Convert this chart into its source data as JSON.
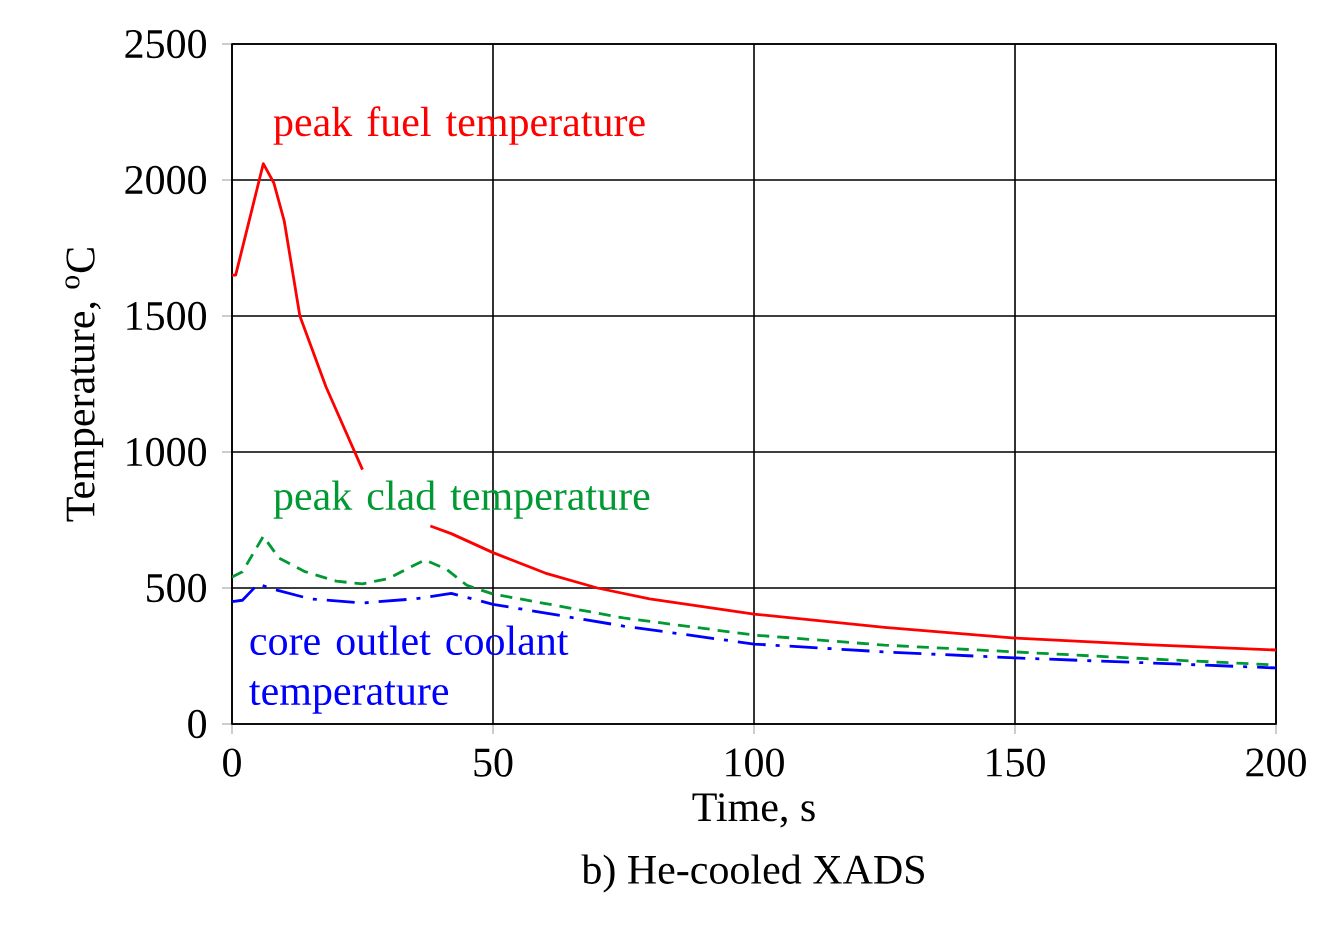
{
  "chart_data": {
    "type": "line",
    "title": "b) He-cooled XADS",
    "xlabel": "Time, s",
    "ylabel": "Temperature, $^{o}$C",
    "xlim": [
      0,
      200
    ],
    "ylim": [
      0,
      2500
    ],
    "xticks": [
      0,
      50,
      100,
      150,
      200
    ],
    "yticks": [
      0,
      500,
      1000,
      1500,
      2000,
      2500
    ],
    "grid": true,
    "legend": false,
    "marker": "none",
    "series": [
      {
        "name": "peak fuel temperature",
        "color": "#ff0000",
        "line_style": "solid",
        "x": [
          0,
          0.7,
          6,
          8,
          10,
          13,
          18,
          25,
          26,
          38,
          42,
          50,
          60,
          70,
          80,
          100,
          125,
          150,
          175,
          200
        ],
        "values": [
          1650,
          1650,
          2060,
          1990,
          1850,
          1500,
          1240,
          935,
          null,
          728,
          700,
          630,
          555,
          500,
          460,
          404,
          355,
          316,
          292,
          272
        ]
      },
      {
        "name": "peak clad temperature",
        "color": "#009933",
        "line_style": "dashed",
        "x": [
          0,
          2,
          6,
          9,
          14,
          20,
          25,
          30,
          34,
          37,
          41,
          45,
          50,
          75,
          100,
          125,
          150,
          175,
          200
        ],
        "values": [
          540,
          560,
          690,
          610,
          560,
          525,
          515,
          535,
          575,
          603,
          570,
          510,
          478,
          390,
          327,
          290,
          265,
          240,
          217
        ]
      },
      {
        "name": "core outlet coolant temperature",
        "color": "#0000ff",
        "line_style": "dashdot",
        "x": [
          0,
          2,
          5,
          8,
          15,
          25,
          35,
          42,
          50,
          75,
          100,
          125,
          150,
          175,
          200
        ],
        "values": [
          450,
          455,
          515,
          495,
          460,
          445,
          460,
          480,
          440,
          360,
          294,
          265,
          243,
          225,
          206
        ]
      }
    ]
  }
}
